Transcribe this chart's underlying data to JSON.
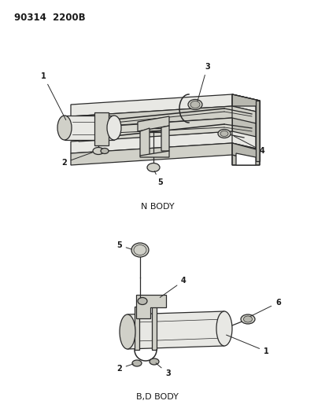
{
  "background_color": "#ffffff",
  "fig_width": 3.99,
  "fig_height": 5.33,
  "dpi": 100,
  "top_label": "90314  2200B",
  "n_body_label": "N BODY",
  "bd_body_label": "B,D BODY",
  "line_color": "#2a2a2a",
  "text_color": "#1a1a1a",
  "fill_light": "#e8e8e4",
  "fill_mid": "#d0d0c8",
  "fill_dark": "#b8b8b0",
  "label_fontsize": 7,
  "title_fontsize": 8.5
}
